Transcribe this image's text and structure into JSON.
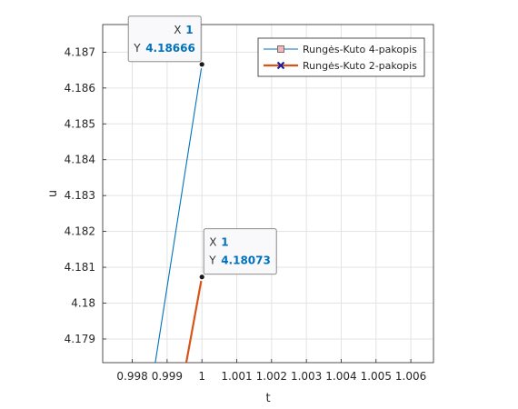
{
  "chart_data": {
    "type": "line",
    "title": "",
    "xlabel": "t",
    "ylabel": "u",
    "xlim": [
      0.99715,
      1.00665
    ],
    "ylim": [
      4.17834,
      4.18777
    ],
    "x_ticks": [
      0.998,
      0.999,
      1,
      1.001,
      1.002,
      1.003,
      1.004,
      1.005,
      1.006
    ],
    "x_tick_labels": [
      "0.998",
      "0.999",
      "1",
      "1.001",
      "1.002",
      "1.003",
      "1.004",
      "1.005",
      "1.006"
    ],
    "y_ticks": [
      4.179,
      4.18,
      4.181,
      4.182,
      4.183,
      4.184,
      4.185,
      4.186,
      4.187
    ],
    "y_tick_labels": [
      "4.179",
      "4.18",
      "4.181",
      "4.182",
      "4.183",
      "4.184",
      "4.185",
      "4.186",
      "4.187"
    ],
    "grid": true,
    "legend_position": "top-right",
    "series": [
      {
        "name": "Rungės-Kuto 4-pakopis",
        "color": "#0072BD",
        "marker": "square",
        "marker_color": "#f4b6b6",
        "x": [
          0.99866,
          1.0
        ],
        "y": [
          4.17834,
          4.18666
        ]
      },
      {
        "name": "Rungės-Kuto 2-pakopis",
        "color": "#D95319",
        "marker": "x",
        "marker_color": "#1a1aa0",
        "x": [
          0.99955,
          1.0
        ],
        "y": [
          4.17834,
          4.18073
        ]
      }
    ],
    "datatips": [
      {
        "x_key": "X",
        "y_key": "Y",
        "x_value": "1",
        "y_value": "4.18666",
        "x": 1.0,
        "y": 4.18666,
        "placement": "upper-left"
      },
      {
        "x_key": "X",
        "y_key": "Y",
        "x_value": "1",
        "y_value": "4.18073",
        "x": 1.0,
        "y": 4.18073,
        "placement": "upper-right"
      }
    ],
    "datatip_value_color": "#0072BD"
  }
}
